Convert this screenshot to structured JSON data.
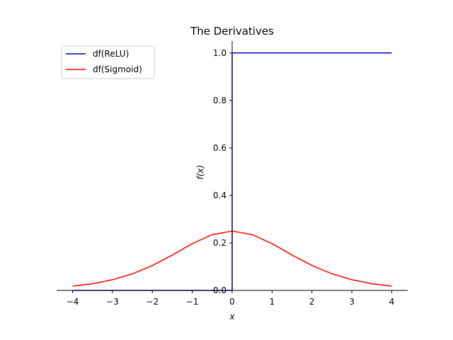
{
  "chart_data": {
    "type": "line",
    "title": "The Derivatives",
    "xlabel": "x",
    "ylabel": "f(x)",
    "xlim": [
      -4.4,
      4.4
    ],
    "ylim": [
      0,
      1.05
    ],
    "xticks": [
      -4,
      -3,
      -2,
      -1,
      0,
      1,
      2,
      3,
      4
    ],
    "yticks": [
      0.0,
      0.2,
      0.4,
      0.6,
      0.8,
      1.0
    ],
    "xtick_labels": [
      "−4",
      "−3",
      "−2",
      "−1",
      "0",
      "1",
      "2",
      "3",
      "4"
    ],
    "ytick_labels": [
      "0.0",
      "0.2",
      "0.4",
      "0.6",
      "0.8",
      "1.0"
    ],
    "grid": false,
    "spines": "centered-y-axis",
    "legend_position": "top-left",
    "series": [
      {
        "name": "df(ReLU)",
        "color": "#0000cc",
        "x": [
          -4,
          -3,
          -2,
          -1,
          0,
          0,
          1,
          2,
          3,
          4
        ],
        "y": [
          0,
          0,
          0,
          0,
          0,
          1,
          1,
          1,
          1,
          1
        ]
      },
      {
        "name": "df(Sigmoid)",
        "color": "#ff0000",
        "x": [
          -4,
          -3.5,
          -3,
          -2.5,
          -2,
          -1.5,
          -1,
          -0.5,
          0,
          0.5,
          1,
          1.5,
          2,
          2.5,
          3,
          3.5,
          4
        ],
        "y": [
          0.018,
          0.028,
          0.045,
          0.07,
          0.105,
          0.149,
          0.197,
          0.235,
          0.25,
          0.235,
          0.197,
          0.149,
          0.105,
          0.07,
          0.045,
          0.028,
          0.018
        ]
      }
    ]
  }
}
